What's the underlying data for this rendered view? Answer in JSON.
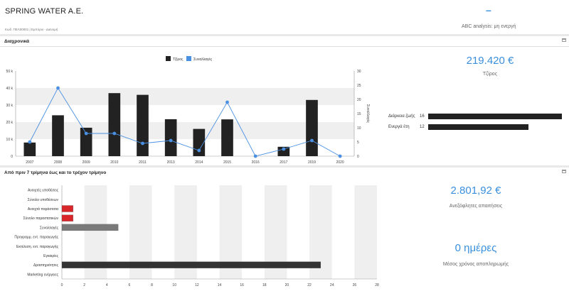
{
  "header": {
    "company": "SPRING WATER A.E.",
    "subtitle": "Κωδ. ΠΕΛ00001 | Εμπόριο - Διανομή",
    "dash": "–",
    "abc": "ABC analysis: μη ενεργή"
  },
  "section1": {
    "title": "Διαχρονικά",
    "kpi_value": "219.420 €",
    "kpi_label": "Τζίρος",
    "stats": [
      {
        "label": "Διάρκεια ζωής",
        "value": "16",
        "fraction": 1.0
      },
      {
        "label": "Ενεργά έτη",
        "value": "12",
        "fraction": 0.75
      }
    ]
  },
  "section2": {
    "title": "Από πριν 7 τρίμηνα έως και το τρέχον τρίμηνο",
    "kpi1_value": "2.801,92 €",
    "kpi1_label": "Ανεξόφλητες απαιτήσεις",
    "kpi2_value": "0 ημέρες",
    "kpi2_label": "Μέσος χρόνος αποπληρωμής"
  },
  "colors": {
    "accent": "#3a8fdc",
    "bar": "#222222",
    "red": "#d9262b",
    "gray": "#7a7a7a"
  },
  "chart_data": [
    {
      "type": "bar",
      "legend": [
        "Τζίρος",
        "Συναλλαγές"
      ],
      "categories": [
        "2007",
        "2008",
        "2009",
        "2010",
        "2011",
        "2013",
        "2014",
        "2015",
        "2016",
        "2017",
        "2019",
        "2020"
      ],
      "series": [
        {
          "name": "Τζίρος",
          "type": "bar",
          "axis": "left",
          "values": [
            8000,
            24000,
            16700,
            37000,
            36000,
            21700,
            16000,
            21600,
            0,
            5500,
            33000,
            0
          ]
        },
        {
          "name": "Συναλλαγές",
          "type": "line",
          "axis": "right",
          "values": [
            5,
            24,
            8,
            8,
            4.5,
            5.5,
            2,
            19,
            0,
            2.5,
            5.5,
            0
          ]
        }
      ],
      "y_left": {
        "ticks": [
          "0",
          "10 k",
          "20 k",
          "30 k",
          "40 k",
          "50 k"
        ],
        "max": 50000
      },
      "y_right": {
        "label": "Συναλλαγές",
        "ticks": [
          "0",
          "5",
          "10",
          "15",
          "20",
          "25",
          "30"
        ],
        "max": 30
      }
    },
    {
      "type": "bar",
      "orientation": "horizontal",
      "categories": [
        "Ανοιχτές υποθέσεις",
        "Σύνολο υποθέσεων",
        "Ανοιχτά παράστατα",
        "Σύνολο παραστατικών",
        "Συναλλαγές",
        "Προγραμμ. εντ. παραγωγής",
        "Εκτέλεση. εντ. παραγωγής",
        "Εγκαιρίες",
        "Δραστηριότητες",
        "Marketing ενέργειες"
      ],
      "values": [
        0,
        0,
        1,
        1,
        5,
        0,
        0,
        0,
        23,
        0
      ],
      "colors": [
        "#d9262b",
        "#d9262b",
        "#d9262b",
        "#d9262b",
        "#7a7a7a",
        "#333",
        "#333",
        "#333",
        "#333",
        "#333"
      ],
      "x_ticks": [
        "0",
        "2",
        "4",
        "6",
        "8",
        "10",
        "12",
        "14",
        "16",
        "18",
        "20",
        "22",
        "24",
        "26",
        "28"
      ],
      "xlim": [
        0,
        28
      ]
    }
  ]
}
